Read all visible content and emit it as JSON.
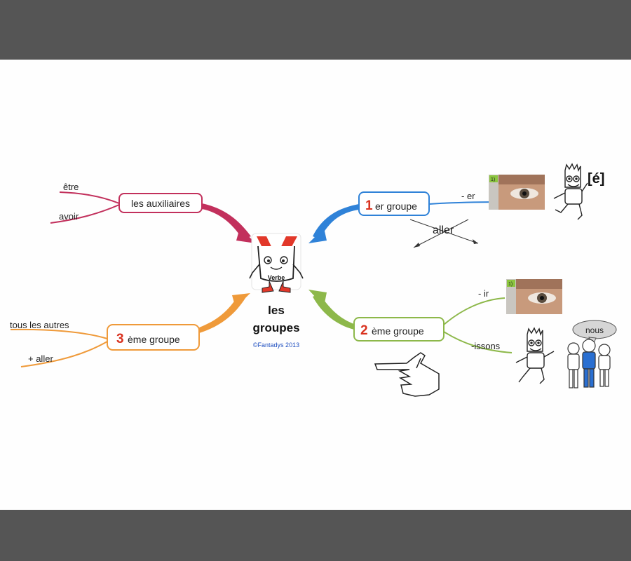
{
  "colors": {
    "auxiliaires": "#c2305c",
    "premier": "#2f82d8",
    "deuxieme": "#8db84a",
    "troisieme": "#ef9a3a",
    "number": "#d9321f",
    "credit": "#1f4fc0"
  },
  "center": {
    "mascot_word": "Verbe",
    "title_line1": "les",
    "title_line2": "groupes",
    "credit": "©Fantadys 2013"
  },
  "branches": {
    "auxiliaires": {
      "label": "les auxiliaires",
      "leaves": [
        "être",
        "avoir"
      ]
    },
    "premier": {
      "number": "1",
      "label": "er groupe",
      "leaf": "- er",
      "crossed_word": "aller",
      "image_badge": "1)",
      "sound": "[é]"
    },
    "deuxieme": {
      "number": "2",
      "label": "ème groupe",
      "leaves": [
        "- ir",
        "-issons"
      ],
      "image_badge": "1)",
      "bubble": "nous"
    },
    "troisieme": {
      "number": "3",
      "label": "ème groupe",
      "leaves": [
        "tous les autres",
        "+ aller"
      ]
    }
  },
  "icons": [
    "eye-photo-icon",
    "bart-character-icon",
    "pointing-hand-icon",
    "kids-group-icon",
    "verb-mascot-icon"
  ]
}
